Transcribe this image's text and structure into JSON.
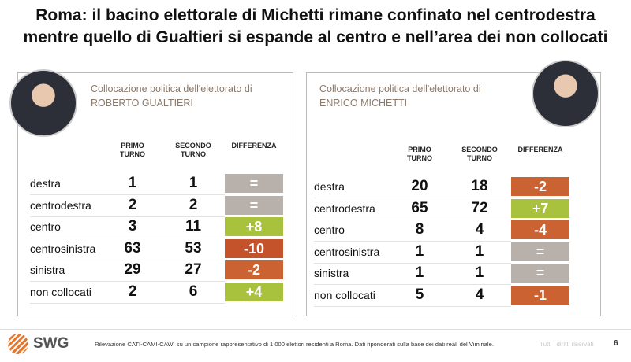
{
  "header": {
    "title_lines": [
      "Roma: il bacino elettorale di Michetti rimane confinato nel centrodestra",
      "mentre quello di Gualtieri si espande al centro e nell’area dei non collocati"
    ]
  },
  "panels": [
    {
      "heading_lines": [
        "Collocazione politica dell'elettorato di",
        "ROBERTO GUALTIERI"
      ],
      "columns": [
        "PRIMO TURNO",
        "SECONDO TURNO",
        "DIFFERENZA"
      ],
      "rows": [
        {
          "label": "destra",
          "primo": 1,
          "secondo": 1,
          "diff": "=",
          "color": "#b8b0aa"
        },
        {
          "label": "centrodestra",
          "primo": 2,
          "secondo": 2,
          "diff": "=",
          "color": "#b8b0aa"
        },
        {
          "label": "centro",
          "primo": 3,
          "secondo": 11,
          "diff": "+8",
          "color": "#a8c23e"
        },
        {
          "label": "centrosinistra",
          "primo": 63,
          "secondo": 53,
          "diff": "-10",
          "color": "#c4532b"
        },
        {
          "label": "sinistra",
          "primo": 29,
          "secondo": 27,
          "diff": "-2",
          "color": "#cb6232"
        },
        {
          "label": "non collocati",
          "primo": 2,
          "secondo": 6,
          "diff": "+4",
          "color": "#a8c23e"
        }
      ]
    },
    {
      "heading_lines": [
        "Collocazione politica dell'elettorato di",
        "ENRICO MICHETTI"
      ],
      "columns": [
        "PRIMO TURNO",
        "SECONDO TURNO",
        "DIFFERENZA"
      ],
      "rows": [
        {
          "label": "destra",
          "primo": 20,
          "secondo": 18,
          "diff": "-2",
          "color": "#cb6232"
        },
        {
          "label": "centrodestra",
          "primo": 65,
          "secondo": 72,
          "diff": "+7",
          "color": "#a8c23e"
        },
        {
          "label": "centro",
          "primo": 8,
          "secondo": 4,
          "diff": "-4",
          "color": "#cb6232"
        },
        {
          "label": "centrosinistra",
          "primo": 1,
          "secondo": 1,
          "diff": "=",
          "color": "#b8b0aa"
        },
        {
          "label": "sinistra",
          "primo": 1,
          "secondo": 1,
          "diff": "=",
          "color": "#b8b0aa"
        },
        {
          "label": "non collocati",
          "primo": 5,
          "secondo": 4,
          "diff": "-1",
          "color": "#cb6232"
        }
      ]
    }
  ],
  "footer": {
    "logo": "SWG",
    "note": "Rilevazione CATI-CAMI-CAWI su un campione rappresentativo di 1.000 elettori residenti a Roma. Dati riponderati sulla base dei dati reali del Viminale.",
    "rights": "Tutti i diritti riservati",
    "page": "6"
  }
}
